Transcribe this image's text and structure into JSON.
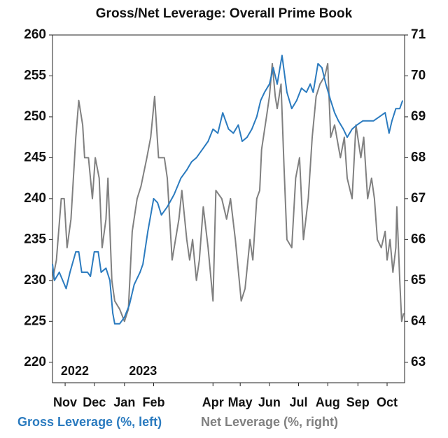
{
  "chart_data": {
    "type": "line",
    "title": "Gross/Net Leverage: Overall Prime Book",
    "xlim": [
      0,
      362
    ],
    "xticks": [
      {
        "value": 13,
        "label": "Nov"
      },
      {
        "value": 43,
        "label": "Dec"
      },
      {
        "value": 74,
        "label": "Jan"
      },
      {
        "value": 104,
        "label": "Feb"
      },
      {
        "value": 165,
        "label": "Apr"
      },
      {
        "value": 193,
        "label": "May"
      },
      {
        "value": 223,
        "label": "Jun"
      },
      {
        "value": 253,
        "label": "Jul"
      },
      {
        "value": 283,
        "label": "Aug"
      },
      {
        "value": 314,
        "label": "Sep"
      },
      {
        "value": 344,
        "label": "Oct"
      }
    ],
    "year_labels": [
      {
        "value": 23,
        "label": "2022"
      },
      {
        "value": 93,
        "label": "2023"
      }
    ],
    "ylim": [
      217.5,
      260
    ],
    "yticks": [
      220,
      225,
      230,
      235,
      240,
      245,
      250,
      255,
      260
    ],
    "y2lim": [
      62.5,
      71
    ],
    "y2ticks": [
      63,
      64,
      65,
      66,
      67,
      68,
      69,
      70,
      71
    ],
    "series": [
      {
        "name": "Gross Leverage (%, left)",
        "color": "#2b7bbf",
        "axis": "y",
        "x": [
          0,
          2,
          7,
          14,
          18,
          24,
          27,
          30,
          36,
          39,
          43,
          47,
          50,
          55,
          59,
          62,
          64,
          69,
          74,
          79,
          84,
          90,
          93,
          98,
          104,
          108,
          112,
          118,
          125,
          132,
          138,
          143,
          148,
          154,
          160,
          165,
          170,
          175,
          181,
          186,
          191,
          195,
          200,
          205,
          210,
          214,
          218,
          223,
          227,
          231,
          236,
          241,
          246,
          251,
          256,
          261,
          265,
          268,
          273,
          277,
          281,
          286,
          290,
          294,
          299,
          303,
          308,
          313,
          319,
          324,
          330,
          336,
          342,
          346,
          349,
          353,
          357,
          360
        ],
        "values": [
          232,
          230,
          231,
          229,
          231,
          233.5,
          233.5,
          231,
          231,
          230.5,
          233.5,
          233.5,
          231,
          231.5,
          230,
          226,
          224.7,
          224.7,
          225.5,
          227,
          229.5,
          231,
          232,
          236,
          240,
          239.5,
          238,
          239,
          240.5,
          242.5,
          243.5,
          244.5,
          245,
          246,
          247,
          248.5,
          248,
          250.5,
          248.5,
          248,
          249,
          247,
          247.5,
          248.5,
          250,
          252,
          253,
          254,
          256,
          254,
          257.5,
          253,
          251,
          252,
          253.5,
          253,
          254,
          253,
          256.5,
          256,
          254,
          252,
          250.5,
          249.5,
          248.5,
          247.5,
          248.5,
          249,
          249.5,
          249.5,
          249.5,
          250,
          250.5,
          248,
          249.5,
          251,
          251,
          252
        ]
      },
      {
        "name": "Net Leverage (%, right)",
        "color": "#808080",
        "axis": "y2",
        "x": [
          0,
          4,
          9,
          12,
          15,
          19,
          24,
          27,
          31,
          33,
          37,
          41,
          44,
          48,
          51,
          55,
          57,
          61,
          64,
          69,
          74,
          78,
          82,
          87,
          91,
          97,
          101,
          105,
          109,
          115,
          118,
          123,
          130,
          133,
          138,
          141,
          144,
          148,
          151,
          155,
          160,
          165,
          168,
          174,
          179,
          183,
          188,
          194,
          198,
          203,
          206,
          210,
          213,
          215,
          220,
          223,
          226,
          229,
          231,
          235,
          238,
          241,
          246,
          250,
          254,
          258,
          263,
          267,
          271,
          275,
          280,
          283,
          286,
          290,
          296,
          300,
          303,
          308,
          312,
          317,
          320,
          324,
          328,
          331,
          334,
          338,
          342,
          344,
          347,
          350,
          353,
          354,
          357,
          359,
          361
        ],
        "values": [
          65,
          65.5,
          67,
          67,
          65.8,
          66.5,
          68.5,
          69.4,
          68.8,
          68,
          68,
          67,
          68,
          67.5,
          65.8,
          66.5,
          67.5,
          65,
          64.5,
          64.3,
          64,
          64.3,
          66.2,
          67,
          67.3,
          68,
          68.5,
          69.5,
          68,
          68,
          67.5,
          65.5,
          66.5,
          67.2,
          66,
          65.5,
          66,
          65,
          65.5,
          66.8,
          65.8,
          64.5,
          67.2,
          67,
          66.5,
          67,
          66,
          64.5,
          64.8,
          66,
          65.5,
          67,
          67.2,
          68.2,
          69,
          69.5,
          70.3,
          69.5,
          69.2,
          69.8,
          67.8,
          66,
          65.8,
          67.5,
          68,
          66,
          67,
          68.5,
          69.5,
          69.8,
          70,
          70.3,
          68.5,
          68.8,
          68,
          68.5,
          67.5,
          67,
          68.8,
          68,
          68.5,
          67,
          67.5,
          67,
          66,
          65.8,
          66.2,
          65.5,
          66,
          65.2,
          65.8,
          66.8,
          65,
          64,
          64.2
        ]
      }
    ]
  }
}
